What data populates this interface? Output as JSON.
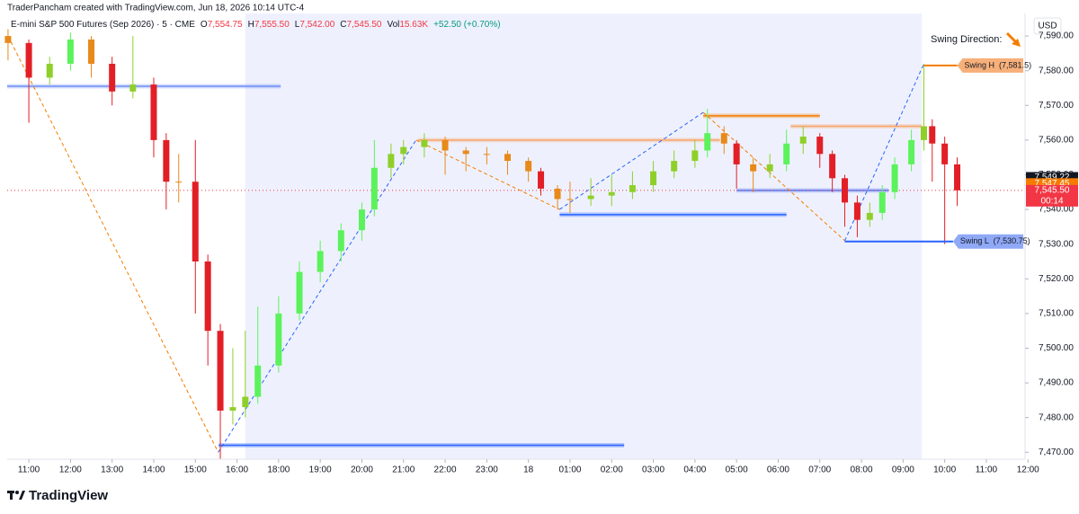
{
  "chart_data": {
    "type": "candlestick",
    "header": "TraderPancham created with TradingView.com, Jun 18, 2026 10:14 UTC-4",
    "legend": {
      "symbol": "E-mini S&P 500 Futures (Sep 2026) · 5 · CME",
      "items": [
        {
          "key": "O",
          "value": "7,554.75"
        },
        {
          "key": "H",
          "value": "7,555.50"
        },
        {
          "key": "L",
          "value": "7,542.00"
        },
        {
          "key": "C",
          "value": "7,545.50"
        }
      ],
      "vol_key": "Vol",
      "vol": "15.63K",
      "change": "+52.50 (+0.70%)"
    },
    "currency": "USD",
    "swing_direction": "Swing Direction:",
    "watermark": "TradingView",
    "xlim": [
      -0.52,
      23.93
    ],
    "ylim": [
      7468,
      7596.5
    ],
    "xticks": [
      {
        "value": 0,
        "label": "11:00"
      },
      {
        "value": 1,
        "label": "12:00"
      },
      {
        "value": 2,
        "label": "13:00"
      },
      {
        "value": 3,
        "label": "14:00"
      },
      {
        "value": 4,
        "label": "15:00"
      },
      {
        "value": 5,
        "label": "16:00"
      },
      {
        "value": 6,
        "label": "18:00"
      },
      {
        "value": 7,
        "label": "19:00"
      },
      {
        "value": 8,
        "label": "20:00"
      },
      {
        "value": 9,
        "label": "21:00"
      },
      {
        "value": 10,
        "label": "22:00"
      },
      {
        "value": 11,
        "label": "23:00"
      },
      {
        "value": 12,
        "label": "18"
      },
      {
        "value": 13,
        "label": "01:00"
      },
      {
        "value": 14,
        "label": "02:00"
      },
      {
        "value": 15,
        "label": "03:00"
      },
      {
        "value": 16,
        "label": "04:00"
      },
      {
        "value": 17,
        "label": "05:00"
      },
      {
        "value": 18,
        "label": "06:00"
      },
      {
        "value": 19,
        "label": "07:00"
      },
      {
        "value": 20,
        "label": "08:00"
      },
      {
        "value": 21,
        "label": "09:00"
      },
      {
        "value": 22,
        "label": "10:00"
      },
      {
        "value": 23,
        "label": "11:00"
      },
      {
        "value": 24,
        "label": "12:00"
      }
    ],
    "yticks": [
      {
        "value": 7470,
        "label": "7,470.00"
      },
      {
        "value": 7480,
        "label": "7,480.00"
      },
      {
        "value": 7490,
        "label": "7,490.00"
      },
      {
        "value": 7500,
        "label": "7,500.00"
      },
      {
        "value": 7510,
        "label": "7,510.00"
      },
      {
        "value": 7520,
        "label": "7,520.00"
      },
      {
        "value": 7530,
        "label": "7,530.00"
      },
      {
        "value": 7540,
        "label": "7,540.00"
      },
      {
        "value": 7550,
        "label": "7,550.00"
      },
      {
        "value": 7560,
        "label": "7,560.00"
      },
      {
        "value": 7570,
        "label": "7,570.00"
      },
      {
        "value": 7580,
        "label": "7,580.00"
      },
      {
        "value": 7590,
        "label": "7,590.00"
      }
    ],
    "session_band": {
      "x": [
        5.2,
        21.45
      ],
      "color": "#eef1fd"
    },
    "candles": {
      "x": [
        -0.5,
        0,
        0.5,
        1,
        1.5,
        2,
        2.5,
        3,
        3.3,
        3.6,
        4,
        4.3,
        4.6,
        4.9,
        5.2,
        5.5,
        6,
        6.5,
        7,
        7.5,
        8,
        8.3,
        8.7,
        9,
        9.5,
        10,
        10.5,
        11,
        11.5,
        12,
        12.3,
        12.7,
        13,
        13.5,
        14,
        14.5,
        15,
        15.5,
        16,
        16.3,
        16.7,
        17,
        17.4,
        17.8,
        18.2,
        18.6,
        19,
        19.3,
        19.6,
        19.9,
        20.2,
        20.5,
        20.8,
        21.2,
        21.5,
        21.7,
        22,
        22.3
      ],
      "open": [
        7590,
        7588,
        7578,
        7582,
        7589,
        7582,
        7574,
        7576,
        7560,
        7548,
        7548,
        7525,
        7505,
        7482,
        7483,
        7486,
        7495,
        7510,
        7522,
        7528,
        7534,
        7540,
        7552,
        7556,
        7558,
        7560,
        7557,
        7556,
        7556,
        7554,
        7551,
        7546,
        7543,
        7543,
        7544,
        7545,
        7547,
        7551,
        7554,
        7557,
        7562,
        7559,
        7553,
        7551,
        7553,
        7559,
        7561,
        7556,
        7549,
        7542,
        7537,
        7539,
        7545,
        7553,
        7560,
        7564,
        7559,
        7553
      ],
      "high": [
        7592,
        7589,
        7584,
        7591,
        7590,
        7584,
        7590,
        7578,
        7562,
        7556,
        7560,
        7527,
        7507,
        7500,
        7505,
        7512,
        7515,
        7525,
        7531,
        7536,
        7542,
        7560,
        7559,
        7560,
        7562,
        7561,
        7558,
        7558,
        7557,
        7555,
        7552,
        7547,
        7548,
        7549,
        7550,
        7551,
        7554,
        7557,
        7560,
        7569,
        7564,
        7560,
        7555,
        7556,
        7563,
        7564,
        7562,
        7557,
        7550,
        7544,
        7542,
        7547,
        7555,
        7563,
        7582,
        7566,
        7561,
        7555
      ],
      "low": [
        7583,
        7565,
        7576,
        7580,
        7578,
        7570,
        7572,
        7555,
        7540,
        7542,
        7510,
        7495,
        7468,
        7478,
        7480,
        7484,
        7493,
        7508,
        7519,
        7525,
        7531,
        7538,
        7549,
        7553,
        7555,
        7550,
        7551,
        7553,
        7550,
        7548,
        7544,
        7540,
        7539,
        7541,
        7541,
        7543,
        7545,
        7549,
        7552,
        7555,
        7556,
        7546,
        7545,
        7549,
        7551,
        7556,
        7552,
        7545,
        7535,
        7532,
        7535,
        7537,
        7543,
        7551,
        7557,
        7548,
        7530,
        7541
      ],
      "close": [
        7588,
        7578,
        7582,
        7589,
        7582,
        7574,
        7576,
        7560,
        7548,
        7548,
        7525,
        7505,
        7482,
        7483,
        7486,
        7495,
        7510,
        7522,
        7528,
        7534,
        7540,
        7552,
        7556,
        7558,
        7560,
        7557,
        7556,
        7556,
        7554,
        7551,
        7546,
        7543,
        7543,
        7544,
        7545,
        7547,
        7551,
        7554,
        7557,
        7562,
        7559,
        7553,
        7551,
        7553,
        7559,
        7561,
        7556,
        7549,
        7542,
        7537,
        7539,
        7545,
        7553,
        7560,
        7564,
        7559,
        7553,
        7545.5
      ],
      "colors": [
        "#e8891a",
        "#e21f26",
        "#8fcf2a",
        "#5cf25c",
        "#e8891a",
        "#e21f26",
        "#8fcf2a",
        "#e21f26",
        "#e21f26",
        "#e8891a",
        "#e21f26",
        "#e21f26",
        "#e21f26",
        "#8fcf2a",
        "#8fcf2a",
        "#5cf25c",
        "#5cf25c",
        "#5cf25c",
        "#5cf25c",
        "#5cf25c",
        "#5cf25c",
        "#5cf25c",
        "#8fcf2a",
        "#8fcf2a",
        "#8fcf2a",
        "#e8891a",
        "#e8891a",
        "#e8891a",
        "#e8891a",
        "#e8891a",
        "#e21f26",
        "#e8891a",
        "#e8891a",
        "#8fcf2a",
        "#8fcf2a",
        "#8fcf2a",
        "#8fcf2a",
        "#8fcf2a",
        "#8fcf2a",
        "#5cf25c",
        "#e8891a",
        "#e21f26",
        "#e8891a",
        "#8fcf2a",
        "#5cf25c",
        "#8fcf2a",
        "#e21f26",
        "#e21f26",
        "#e21f26",
        "#e21f26",
        "#8fcf2a",
        "#5cf25c",
        "#5cf25c",
        "#5cf25c",
        "#8fcf2a",
        "#e21f26",
        "#e21f26",
        "#e21f26"
      ]
    },
    "zigzag": {
      "x": [
        -0.5,
        4.55,
        9.3,
        12.75,
        16.2,
        19.6,
        21.5
      ],
      "y": [
        7590,
        7470,
        7560,
        7540,
        7568,
        7531,
        7582
      ],
      "up_color": "#2962ff",
      "down_color": "#f57c00"
    },
    "levels": [
      {
        "value": 7575.5,
        "x": [
          -0.52,
          6.05
        ],
        "color": "#6f8ff5"
      },
      {
        "value": 7472,
        "x": [
          4.56,
          14.3
        ],
        "color": "#2962ff"
      },
      {
        "value": 7560,
        "x": [
          9.35,
          16.6
        ],
        "color": "#f7a56b"
      },
      {
        "value": 7567,
        "x": [
          16.2,
          19.0
        ],
        "color": "#f57c00"
      },
      {
        "value": 7538.5,
        "x": [
          12.75,
          18.2
        ],
        "color": "#2962ff"
      },
      {
        "value": 7564,
        "x": [
          18.3,
          21.45
        ],
        "color": "#f7a56b"
      },
      {
        "value": 7545.5,
        "x": [
          17.0,
          20.65
        ],
        "color": "#5a7ef7"
      }
    ],
    "swing_labels": [
      {
        "text": "Swing H  (7,581.5)",
        "value": 7581.5,
        "x": [
          21.5,
          22.3
        ],
        "color": "#f57c00",
        "box": "#f7b07a"
      },
      {
        "text": "Swing L  (7,530.75)",
        "value": 7530.75,
        "x": [
          19.6,
          22.2
        ],
        "color": "#2962ff",
        "box": "#8fa9f7"
      }
    ],
    "price_markers": [
      {
        "value": 7549.22,
        "label": "7,549.22",
        "color": "#131722"
      },
      {
        "value": 7547.45,
        "label": "7,547.45",
        "color": "#f57c00"
      },
      {
        "value": 7545.5,
        "label": "7,545.50",
        "sublabel": "00:14",
        "color": "#f23645"
      }
    ]
  }
}
